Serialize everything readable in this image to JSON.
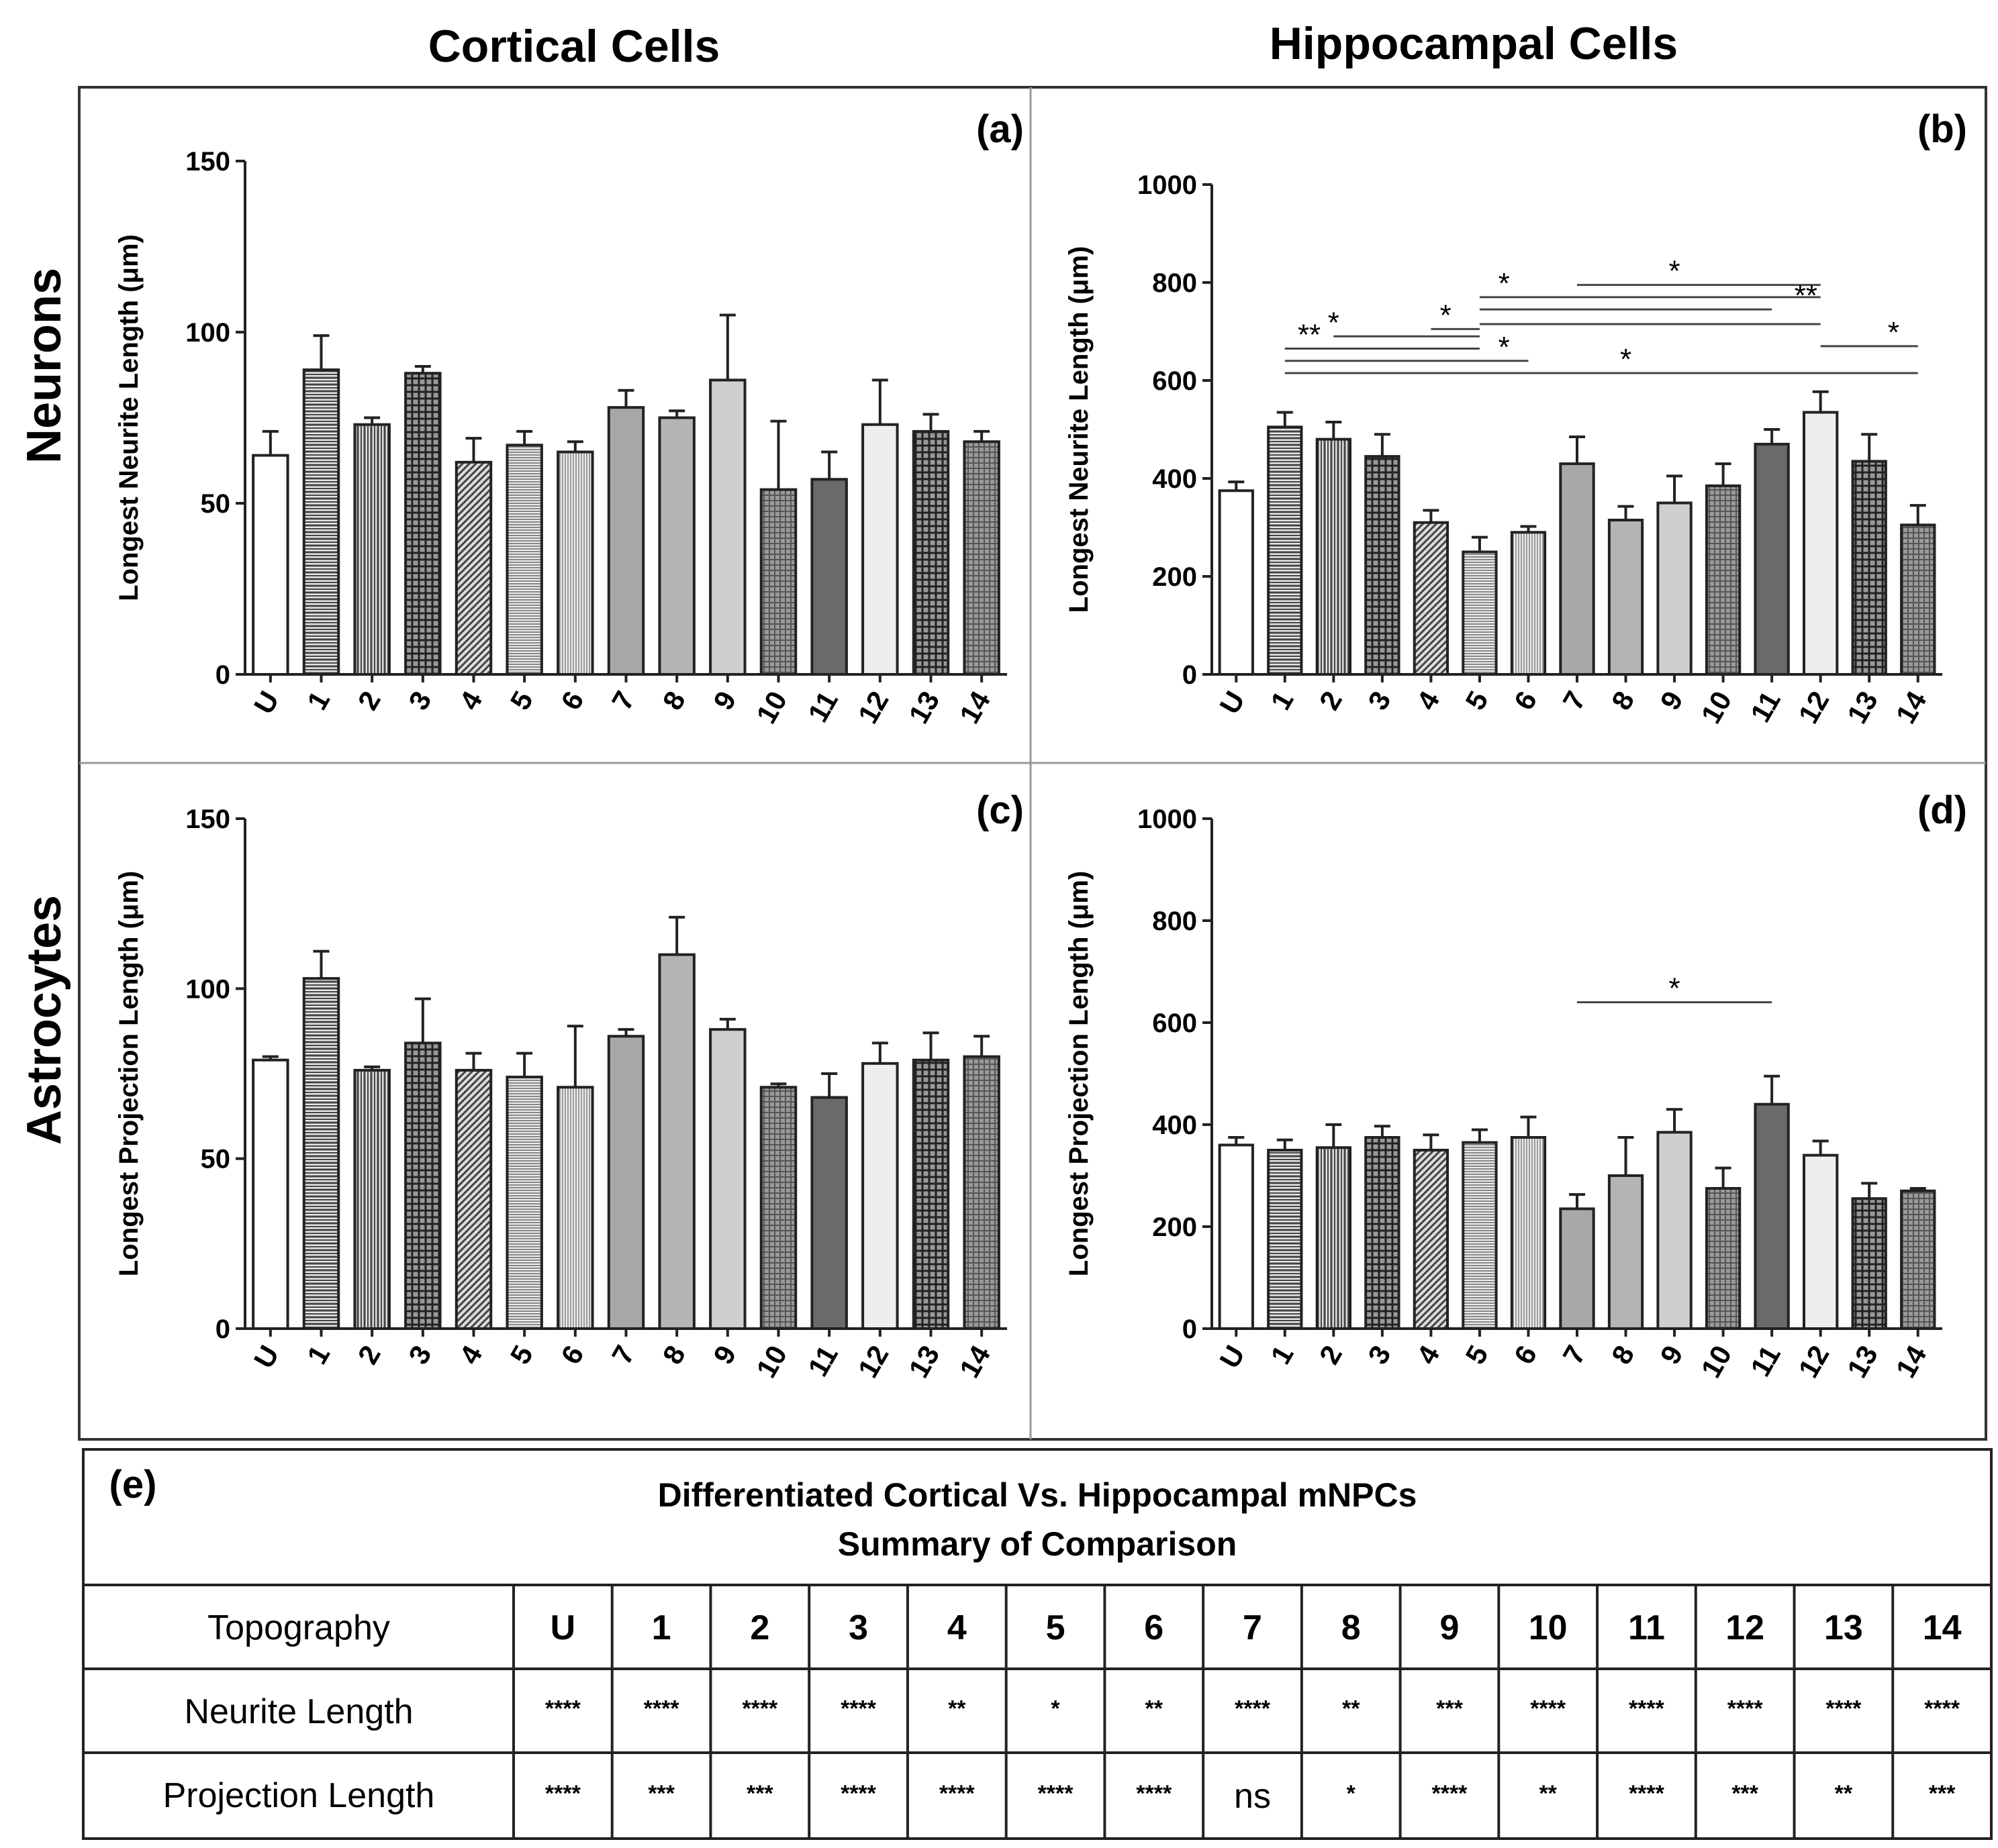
{
  "column_titles": [
    "Cortical Cells",
    "Hippocampal Cells"
  ],
  "row_titles": [
    "Neurons",
    "Astrocytes"
  ],
  "colors": {
    "frame": "#333333",
    "grid_divider": "#999999",
    "bar_edge": "#222222",
    "fills": [
      "#ffffff",
      "#c9c9c9",
      "#bdbdbd",
      "#6e6e6e",
      "#b0b0b0",
      "#d8d8d8",
      "#dcdcdc",
      "#a8a8a8",
      "#b4b4b4",
      "#cfcfcf",
      "#8a8a8a",
      "#6a6a6a",
      "#eeeeee",
      "#505050",
      "#b8b8b8"
    ],
    "patterns": [
      "solid",
      "hlines",
      "vlines",
      "grid",
      "diag",
      "hlines-fine",
      "vlines-fine",
      "solid",
      "solid",
      "solid",
      "grid-fine",
      "solid",
      "solid",
      "grid",
      "grid-fine"
    ]
  },
  "chart_data": [
    {
      "panel": "(a)",
      "type": "bar",
      "title": "Cortical Cells",
      "ylabel": "Longest Neurite Length (μm)",
      "ylim": [
        0,
        150
      ],
      "yticks": [
        0,
        50,
        100,
        150
      ],
      "categories": [
        "U",
        "1",
        "2",
        "3",
        "4",
        "5",
        "6",
        "7",
        "8",
        "9",
        "10",
        "11",
        "12",
        "13",
        "14"
      ],
      "values": [
        64,
        89,
        73,
        88,
        62,
        67,
        65,
        78,
        75,
        86,
        54,
        57,
        73,
        71,
        68
      ],
      "errors": [
        7,
        10,
        2,
        2,
        7,
        4,
        3,
        5,
        2,
        19,
        20,
        8,
        13,
        5,
        3
      ],
      "significance": []
    },
    {
      "panel": "(b)",
      "type": "bar",
      "title": "Hippocampal Cells",
      "ylabel": "Longest Neurite Length (μm)",
      "ylim": [
        0,
        1000
      ],
      "yticks": [
        0,
        200,
        400,
        600,
        800,
        1000
      ],
      "categories": [
        "U",
        "1",
        "2",
        "3",
        "4",
        "5",
        "6",
        "7",
        "8",
        "9",
        "10",
        "11",
        "12",
        "13",
        "14"
      ],
      "values": [
        375,
        505,
        480,
        445,
        310,
        250,
        290,
        430,
        315,
        350,
        385,
        470,
        535,
        435,
        305
      ],
      "errors": [
        18,
        30,
        35,
        45,
        25,
        30,
        12,
        55,
        28,
        55,
        45,
        30,
        42,
        55,
        40
      ],
      "significance": [
        {
          "from": "7",
          "to": "12",
          "y": 795,
          "label": "*",
          "label_at": "9"
        },
        {
          "from": "5",
          "to": "12",
          "y": 770,
          "label": "*",
          "label_at": "5.5"
        },
        {
          "from": "5",
          "to": "11",
          "y": 745,
          "label": "**",
          "label_at": "11.7"
        },
        {
          "from": "5",
          "to": "12",
          "y": 715,
          "label": "",
          "label_at": "5"
        },
        {
          "from": "4",
          "to": "5",
          "y": 705,
          "label": "*",
          "label_at": "4.3"
        },
        {
          "from": "2",
          "to": "5",
          "y": 690,
          "label": "*",
          "label_at": "2"
        },
        {
          "from": "1",
          "to": "5",
          "y": 665,
          "label": "**",
          "label_at": "1.5"
        },
        {
          "from": "12",
          "to": "14",
          "y": 670,
          "label": "*",
          "label_at": "13.5"
        },
        {
          "from": "1",
          "to": "6",
          "y": 640,
          "label": "*",
          "label_at": "5.5"
        },
        {
          "from": "1",
          "to": "14",
          "y": 615,
          "label": "*",
          "label_at": "8"
        }
      ]
    },
    {
      "panel": "(c)",
      "type": "bar",
      "title": "Cortical Cells",
      "ylabel": "Longest Projection Length (μm)",
      "ylim": [
        0,
        150
      ],
      "yticks": [
        0,
        50,
        100,
        150
      ],
      "categories": [
        "U",
        "1",
        "2",
        "3",
        "4",
        "5",
        "6",
        "7",
        "8",
        "9",
        "10",
        "11",
        "12",
        "13",
        "14"
      ],
      "values": [
        79,
        103,
        76,
        84,
        76,
        74,
        71,
        86,
        110,
        88,
        71,
        68,
        78,
        79,
        80
      ],
      "errors": [
        1,
        8,
        1,
        13,
        5,
        7,
        18,
        2,
        11,
        3,
        1,
        7,
        6,
        8,
        6
      ],
      "significance": []
    },
    {
      "panel": "(d)",
      "type": "bar",
      "title": "Hippocampal Cells",
      "ylabel": "Longest Projection Length (μm)",
      "ylim": [
        0,
        1000
      ],
      "yticks": [
        0,
        200,
        400,
        600,
        800,
        1000
      ],
      "categories": [
        "U",
        "1",
        "2",
        "3",
        "4",
        "5",
        "6",
        "7",
        "8",
        "9",
        "10",
        "11",
        "12",
        "13",
        "14"
      ],
      "values": [
        360,
        350,
        355,
        375,
        350,
        365,
        375,
        235,
        300,
        385,
        275,
        440,
        340,
        255,
        270
      ],
      "errors": [
        15,
        20,
        45,
        22,
        30,
        25,
        40,
        28,
        75,
        45,
        40,
        55,
        28,
        30,
        5
      ],
      "significance": [
        {
          "from": "7",
          "to": "11",
          "y": 640,
          "label": "*",
          "label_at": "9"
        }
      ]
    }
  ],
  "table": {
    "label": "(e)",
    "title_line1": "Differentiated Cortical Vs. Hippocampal mNPCs",
    "title_line2": "Summary of Comparison",
    "header_label": "Topography",
    "columns": [
      "U",
      "1",
      "2",
      "3",
      "4",
      "5",
      "6",
      "7",
      "8",
      "9",
      "10",
      "11",
      "12",
      "13",
      "14"
    ],
    "rows": [
      {
        "label": "Neurite Length",
        "cells": [
          "****",
          "****",
          "****",
          "****",
          "**",
          "*",
          "**",
          "****",
          "**",
          "***",
          "****",
          "****",
          "****",
          "****",
          "****"
        ]
      },
      {
        "label": "Projection Length",
        "cells": [
          "****",
          "***",
          "***",
          "****",
          "****",
          "****",
          "****",
          "ns",
          "*",
          "****",
          "**",
          "****",
          "***",
          "**",
          "***"
        ]
      }
    ]
  }
}
